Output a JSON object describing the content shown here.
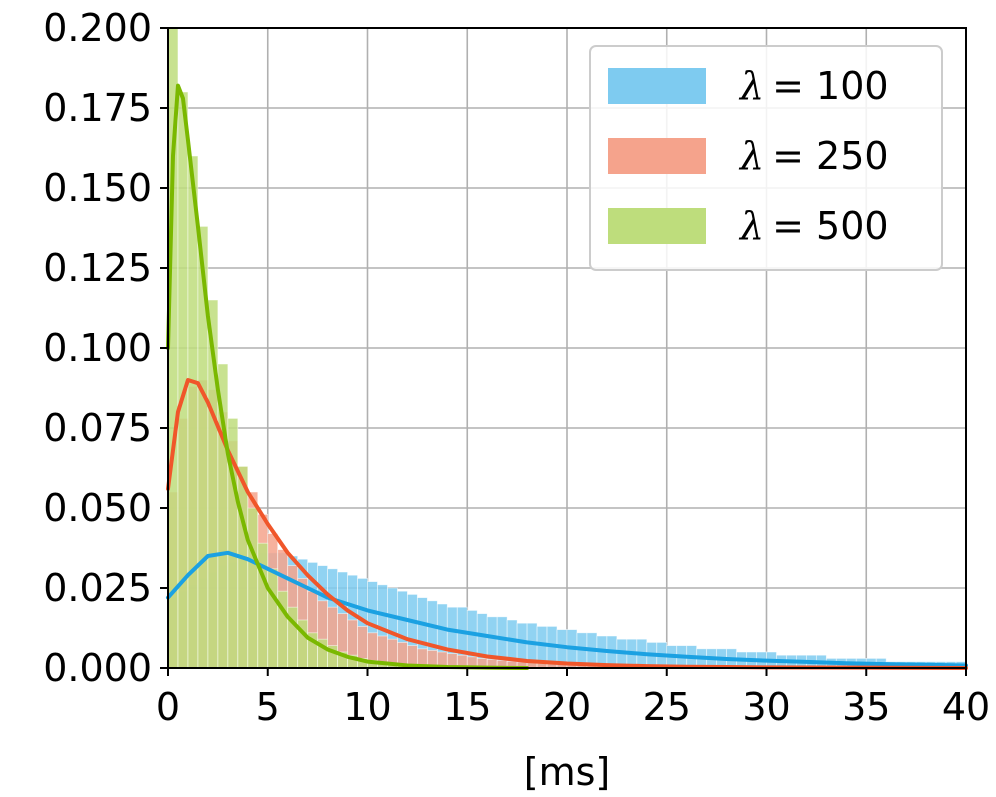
{
  "chart_data": {
    "type": "histogram",
    "title": "",
    "xlabel": "[ms]",
    "ylabel": "",
    "xlim": [
      0,
      40
    ],
    "ylim": [
      0,
      0.2
    ],
    "xticks": [
      0,
      5,
      10,
      15,
      20,
      25,
      30,
      35,
      40
    ],
    "yticks": [
      0.0,
      0.025,
      0.05,
      0.075,
      0.1,
      0.125,
      0.15,
      0.175,
      0.2
    ],
    "xtick_labels": [
      "0",
      "5",
      "10",
      "15",
      "20",
      "25",
      "30",
      "35",
      "40"
    ],
    "ytick_labels": [
      "0.000",
      "0.025",
      "0.050",
      "0.075",
      "0.100",
      "0.125",
      "0.150",
      "0.175",
      "0.200"
    ],
    "grid": true,
    "legend_position": "top-right",
    "bin_width": 0.5,
    "series": [
      {
        "name": "λ = 100",
        "legend_symbol": "λ",
        "legend_value": "= 100",
        "fill_color": "#7ecbf0",
        "line_color": "#1ba1e2",
        "histogram": [
          0.022,
          0.024,
          0.026,
          0.028,
          0.03,
          0.032,
          0.033,
          0.034,
          0.035,
          0.036,
          0.036,
          0.036,
          0.035,
          0.034,
          0.033,
          0.032,
          0.031,
          0.03,
          0.029,
          0.028,
          0.027,
          0.026,
          0.025,
          0.024,
          0.023,
          0.022,
          0.021,
          0.02,
          0.019,
          0.019,
          0.018,
          0.017,
          0.016,
          0.016,
          0.015,
          0.014,
          0.014,
          0.013,
          0.013,
          0.012,
          0.012,
          0.011,
          0.011,
          0.01,
          0.01,
          0.009,
          0.009,
          0.009,
          0.008,
          0.008,
          0.007,
          0.007,
          0.007,
          0.006,
          0.006,
          0.006,
          0.006,
          0.005,
          0.005,
          0.005,
          0.005,
          0.004,
          0.004,
          0.004,
          0.004,
          0.004,
          0.003,
          0.003,
          0.003,
          0.003,
          0.003,
          0.003,
          0.002,
          0.002,
          0.002,
          0.002,
          0.002,
          0.002,
          0.002,
          0.002
        ],
        "kde": [
          [
            0,
            0.022
          ],
          [
            1,
            0.029
          ],
          [
            2,
            0.035
          ],
          [
            3,
            0.036
          ],
          [
            4,
            0.034
          ],
          [
            5,
            0.031
          ],
          [
            6,
            0.028
          ],
          [
            7,
            0.025
          ],
          [
            8,
            0.022
          ],
          [
            9,
            0.02
          ],
          [
            10,
            0.018
          ],
          [
            12,
            0.015
          ],
          [
            14,
            0.012
          ],
          [
            16,
            0.01
          ],
          [
            18,
            0.008
          ],
          [
            20,
            0.0065
          ],
          [
            22,
            0.0053
          ],
          [
            24,
            0.0043
          ],
          [
            26,
            0.0035
          ],
          [
            28,
            0.0028
          ],
          [
            30,
            0.0023
          ],
          [
            32,
            0.0019
          ],
          [
            34,
            0.0015
          ],
          [
            36,
            0.0012
          ],
          [
            38,
            0.001
          ],
          [
            40,
            0.0008
          ]
        ]
      },
      {
        "name": "λ = 250",
        "legend_symbol": "λ",
        "legend_value": "= 250",
        "fill_color": "#f5a38c",
        "line_color": "#f0562a",
        "histogram": [
          0.055,
          0.078,
          0.088,
          0.09,
          0.087,
          0.08,
          0.071,
          0.063,
          0.055,
          0.048,
          0.042,
          0.037,
          0.032,
          0.028,
          0.024,
          0.021,
          0.019,
          0.017,
          0.015,
          0.013,
          0.011,
          0.01,
          0.009,
          0.008,
          0.007,
          0.006,
          0.0055,
          0.005,
          0.0045,
          0.004,
          0.0035,
          0.003,
          0.0027,
          0.0024,
          0.0021,
          0.0019,
          0.0017,
          0.0015,
          0.0013,
          0.0012,
          0.001,
          0.0009,
          0.0008,
          0.0007,
          0.0006,
          0.0006,
          0.0005,
          0.0005,
          0.0004,
          0.0004
        ],
        "kde": [
          [
            0,
            0.056
          ],
          [
            0.5,
            0.08
          ],
          [
            1,
            0.09
          ],
          [
            1.5,
            0.089
          ],
          [
            2,
            0.083
          ],
          [
            3,
            0.068
          ],
          [
            4,
            0.055
          ],
          [
            5,
            0.045
          ],
          [
            6,
            0.036
          ],
          [
            7,
            0.029
          ],
          [
            8,
            0.023
          ],
          [
            9,
            0.018
          ],
          [
            10,
            0.014
          ],
          [
            12,
            0.009
          ],
          [
            14,
            0.0058
          ],
          [
            16,
            0.0036
          ],
          [
            18,
            0.0022
          ],
          [
            20,
            0.0014
          ],
          [
            22,
            0.0009
          ],
          [
            24,
            0.0006
          ],
          [
            26,
            0.0004
          ],
          [
            28,
            0.0003
          ],
          [
            30,
            0.0002
          ],
          [
            35,
            0.0001
          ],
          [
            40,
            0.0
          ]
        ]
      },
      {
        "name": "λ = 500",
        "legend_symbol": "λ",
        "legend_value": "= 500",
        "fill_color": "#bedd7c",
        "line_color": "#7ab800",
        "histogram": [
          0.2,
          0.18,
          0.16,
          0.138,
          0.115,
          0.095,
          0.078,
          0.063,
          0.05,
          0.039,
          0.031,
          0.024,
          0.019,
          0.015,
          0.011,
          0.009,
          0.007,
          0.005,
          0.004,
          0.003,
          0.0023,
          0.0017,
          0.0013,
          0.001,
          0.0008,
          0.0006,
          0.0005,
          0.0004,
          0.0003,
          0.0002
        ],
        "kde": [
          [
            0,
            0.1
          ],
          [
            0.25,
            0.16
          ],
          [
            0.5,
            0.182
          ],
          [
            0.75,
            0.178
          ],
          [
            1,
            0.165
          ],
          [
            1.5,
            0.138
          ],
          [
            2,
            0.11
          ],
          [
            2.5,
            0.087
          ],
          [
            3,
            0.067
          ],
          [
            3.5,
            0.052
          ],
          [
            4,
            0.04
          ],
          [
            5,
            0.025
          ],
          [
            6,
            0.016
          ],
          [
            7,
            0.0095
          ],
          [
            8,
            0.0058
          ],
          [
            9,
            0.0035
          ],
          [
            10,
            0.002
          ],
          [
            12,
            0.0008
          ],
          [
            14,
            0.0003
          ],
          [
            16,
            0.0001
          ],
          [
            18,
            0.0
          ]
        ]
      }
    ]
  }
}
